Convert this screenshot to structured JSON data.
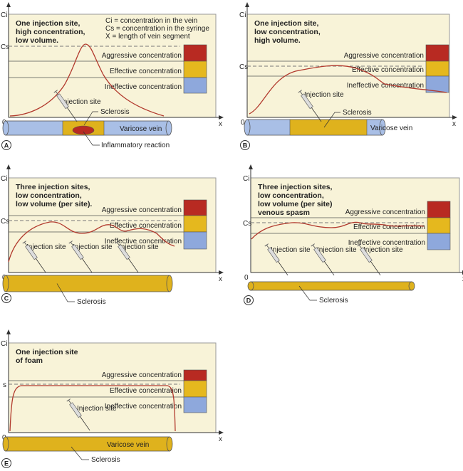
{
  "axis": {
    "y": "Ci",
    "x": "x",
    "origin": "0",
    "cs": "Cs"
  },
  "legend": {
    "aggressive": "Aggressive concentration",
    "effective": "Effective concentration",
    "ineffective": "Ineffective concentration"
  },
  "key": [
    "Ci = concentration in the vein",
    "Cs = concentration in the syringe",
    "X = length of vein segment"
  ],
  "colors": {
    "aggressive": "#b82a22",
    "effective": "#e5b81e",
    "ineffective": "#8ea8dc",
    "bg": "#f8f3d8",
    "curve": "#b23a2e",
    "vein": "#a9bfe6",
    "sclerosis": "#dfb21d"
  },
  "panels": [
    {
      "letter": "A",
      "cs_label": "Cs",
      "title": [
        "One injection site,",
        "high concentration,",
        "low volume."
      ],
      "labels": {
        "injection": "Injection site",
        "sclerosis": "Sclerosis",
        "vein": "Varicose vein",
        "reaction": "Inflammatory reaction"
      }
    },
    {
      "letter": "B",
      "cs_label": "Cs",
      "title": [
        "One injection site,",
        "low concentration,",
        "high volume."
      ],
      "labels": {
        "injection": "Injection site",
        "sclerosis": "Sclerosis",
        "vein": "Varicose vein"
      }
    },
    {
      "letter": "C",
      "cs_label": "Cs",
      "title": [
        "Three injection sites,",
        "low concentration,",
        "low volume (per site)."
      ],
      "labels": {
        "injection": "Injection site",
        "sclerosis": "Sclerosis"
      }
    },
    {
      "letter": "D",
      "cs_label": "Cs",
      "title": [
        "Three injection sites,",
        "low concentration,",
        "low volume (per site)",
        "venous spasm"
      ],
      "labels": {
        "injection": "Injection site",
        "sclerosis": "Sclerosis"
      }
    },
    {
      "letter": "E",
      "cs_label": "s",
      "title": [
        "One injection site",
        "of foam"
      ],
      "labels": {
        "injection": "Injection site",
        "sclerosis": "Sclerosis",
        "vein": "Varicose vein"
      }
    }
  ]
}
